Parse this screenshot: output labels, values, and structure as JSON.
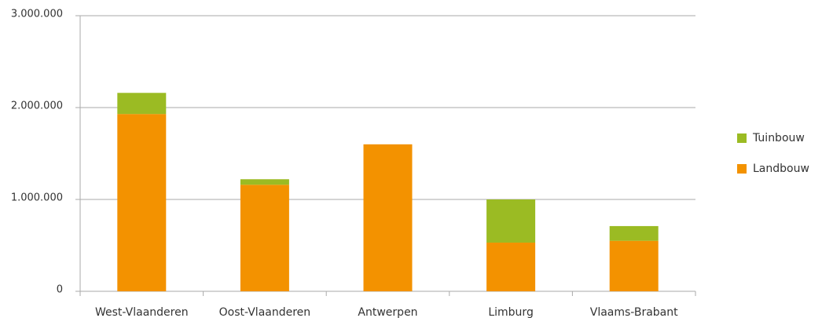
{
  "chart_data": {
    "type": "bar",
    "stacked": true,
    "categories": [
      "West-Vlaanderen",
      "Oost-Vlaanderen",
      "Antwerpen",
      "Limburg",
      "Vlaams-Brabant"
    ],
    "series": [
      {
        "name": "Landbouw",
        "color": "#f39200",
        "values": [
          1930000,
          1160000,
          1600000,
          530000,
          550000
        ]
      },
      {
        "name": "Tuinbouw",
        "color": "#9bbb23",
        "values": [
          230000,
          60000,
          0,
          470000,
          160000
        ]
      }
    ],
    "ylim": [
      0,
      3000000
    ],
    "yticks": [
      0,
      {
        "value": 1000000,
        "label": "1.000.000"
      },
      {
        "value": 2000000,
        "label": "2.000.000"
      },
      {
        "value": 3000000,
        "label": "3.000.000"
      }
    ],
    "grid": true,
    "legend": "right"
  }
}
